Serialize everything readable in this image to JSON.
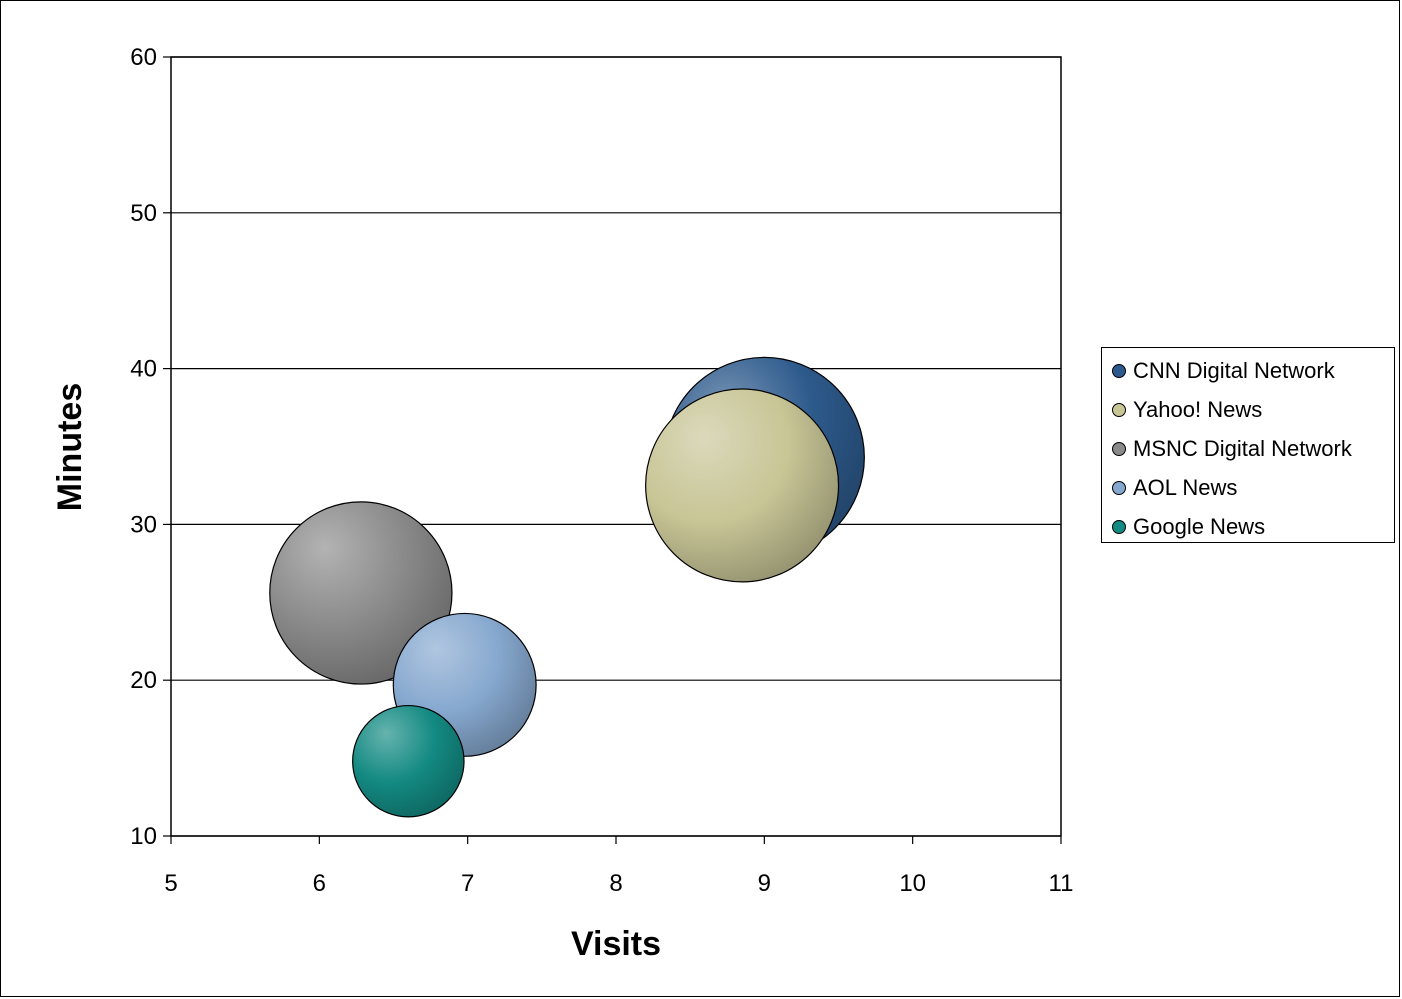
{
  "chart_data": {
    "type": "bubble",
    "title": "",
    "xlabel": "Visits",
    "ylabel": "Minutes",
    "xlim": [
      5,
      11
    ],
    "ylim": [
      10,
      60
    ],
    "xticks": [
      "5",
      "6",
      "7",
      "8",
      "9",
      "10",
      "11"
    ],
    "yticks": [
      "10",
      "20",
      "30",
      "40",
      "50",
      "60"
    ],
    "grid": "horizontal",
    "legend_position": "right",
    "series": [
      {
        "name": "CNN Digital Network",
        "x": 9.0,
        "y": 34.3,
        "size": 100,
        "color": "#2d5a8c"
      },
      {
        "name": "Yahoo! News",
        "x": 8.85,
        "y": 32.5,
        "size": 93,
        "color": "#c8c596"
      },
      {
        "name": "MSNC Digital Network",
        "x": 6.28,
        "y": 25.6,
        "size": 83,
        "color": "#8a8a8a"
      },
      {
        "name": "AOL News",
        "x": 6.98,
        "y": 19.7,
        "size": 51,
        "color": "#86a8cf"
      },
      {
        "name": "Google News",
        "x": 6.6,
        "y": 14.8,
        "size": 31,
        "color": "#138a82"
      }
    ]
  }
}
